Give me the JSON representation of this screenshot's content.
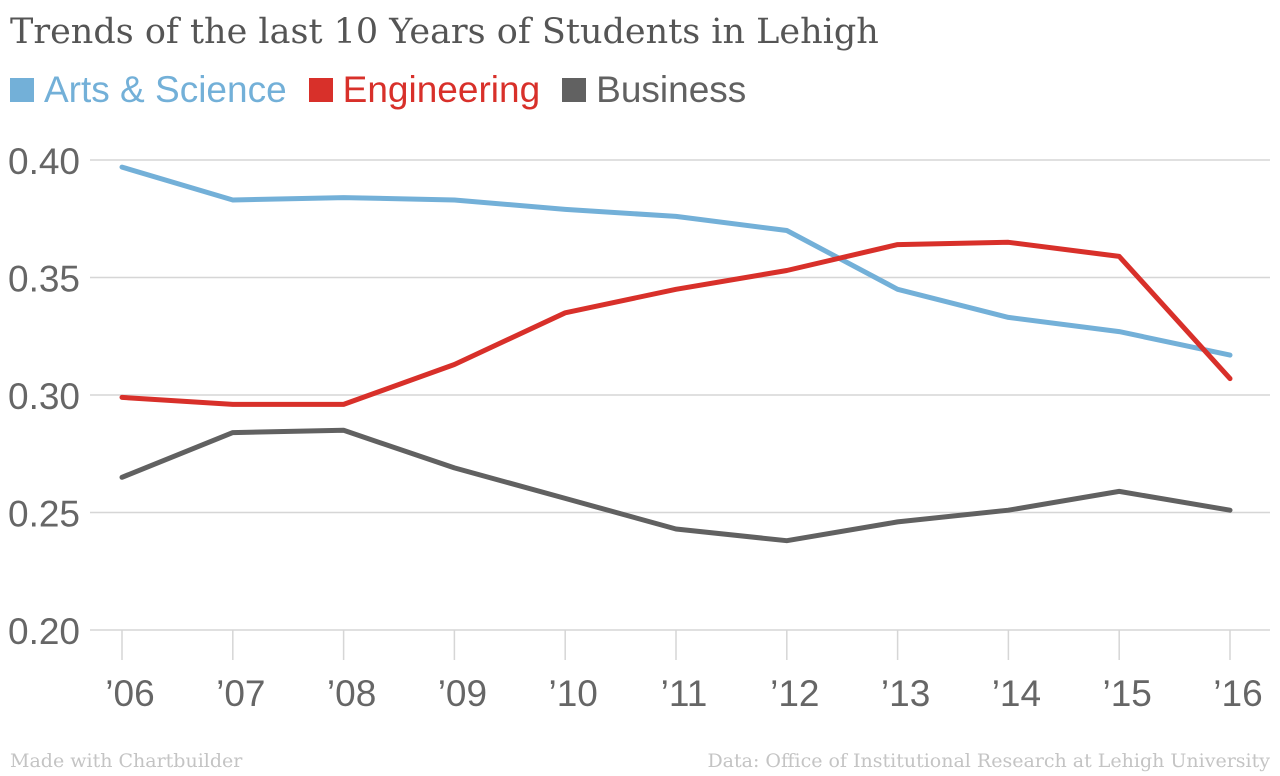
{
  "chart_data": {
    "type": "line",
    "title": "Trends of the last 10 Years of Students in Lehigh",
    "x": [
      "’06",
      "’07",
      "’08",
      "’09",
      "’10",
      "’11",
      "’12",
      "’13",
      "’14",
      "’15",
      "’16"
    ],
    "y_ticks": [
      "0.20",
      "0.25",
      "0.30",
      "0.35",
      "0.40"
    ],
    "ylim": [
      0.2,
      0.4
    ],
    "grid": true,
    "legend_position": "top-left",
    "series": [
      {
        "name": "Arts & Science",
        "color": "#73b0d8",
        "values": [
          0.397,
          0.383,
          0.384,
          0.383,
          0.379,
          0.376,
          0.37,
          0.345,
          0.333,
          0.327,
          0.317
        ]
      },
      {
        "name": "Engineering",
        "color": "#d8302a",
        "values": [
          0.299,
          0.296,
          0.296,
          0.313,
          0.335,
          0.345,
          0.353,
          0.364,
          0.365,
          0.359,
          0.307
        ]
      },
      {
        "name": "Business",
        "color": "#616161",
        "values": [
          0.265,
          0.284,
          0.285,
          0.269,
          0.256,
          0.243,
          0.238,
          0.246,
          0.251,
          0.259,
          0.251
        ]
      }
    ]
  },
  "footer": {
    "made_with": "Made with Chartbuilder",
    "source": "Data: Office of Institutional Research at Lehigh University"
  }
}
